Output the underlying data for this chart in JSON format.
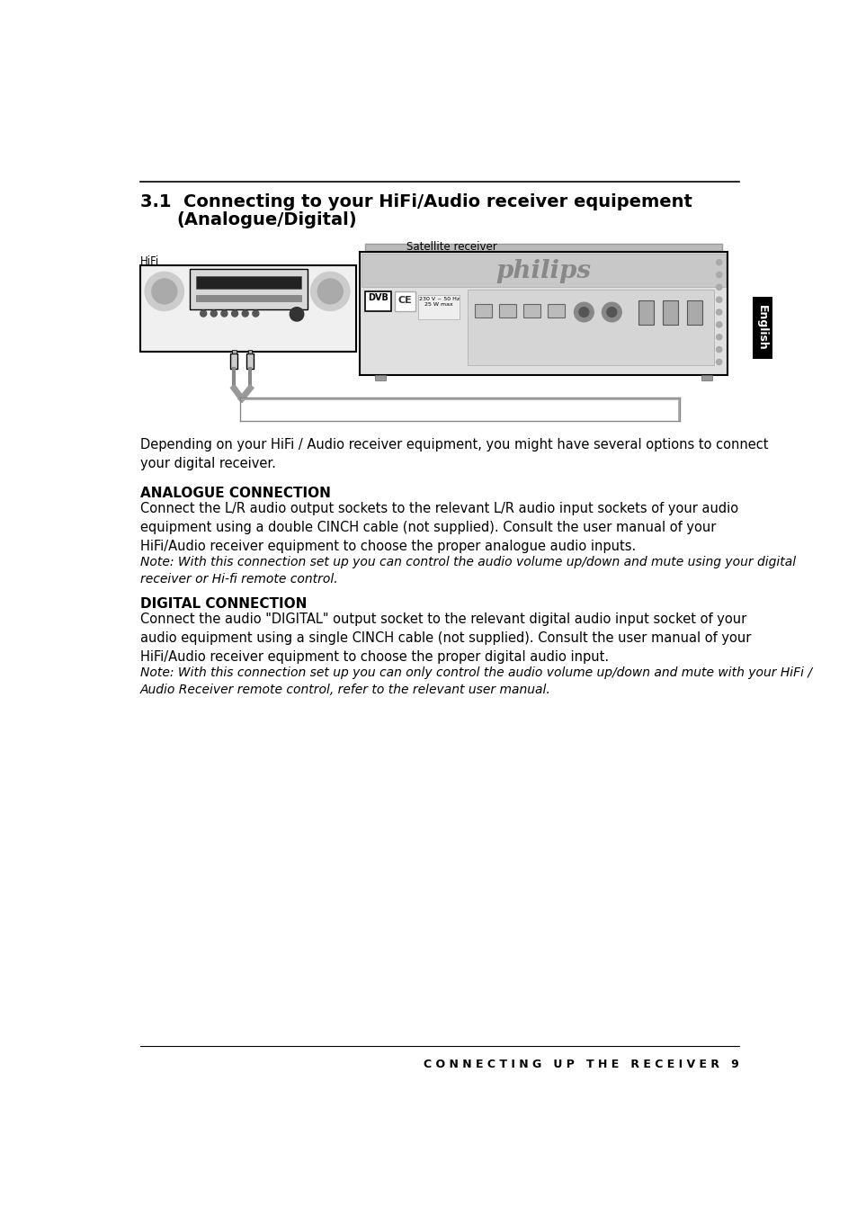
{
  "title_number": "3.1",
  "title_text": "Connecting to your HiFi/Audio receiver equipement",
  "title_text2": "(Analogue/Digital)",
  "bg_color": "#ffffff",
  "tab_color": "#000000",
  "tab_text": "English",
  "section1_heading": "ANALOGUE CONNECTION",
  "section1_body": "Connect the L/R audio output sockets to the relevant L/R audio input sockets of your audio\nequipment using a double CINCH cable (not supplied). Consult the user manual of your\nHiFi/Audio receiver equipment to choose the proper analogue audio inputs.",
  "section1_note": "Note: With this connection set up you can control the audio volume up/down and mute using your digital\nreceiver or Hi-fi remote control.",
  "section2_heading": "DIGITAL CONNECTION",
  "section2_body": "Connect the audio \"DIGITAL\" output socket to the relevant digital audio input socket of your\naudio equipment using a single CINCH cable (not supplied). Consult the user manual of your\nHiFi/Audio receiver equipment to choose the proper digital audio input.",
  "section2_note": "Note: With this connection set up you can only control the audio volume up/down and mute with your HiFi /\nAudio Receiver remote control, refer to the relevant user manual.",
  "intro_text": "Depending on your HiFi / Audio receiver equipment, you might have several options to connect\nyour digital receiver.",
  "footer_text": "C O N N E C T I N G   U P   T H E   R E C E I V E R   9",
  "label_hifi": "HiFi",
  "label_satellite": "Satellite receiver"
}
